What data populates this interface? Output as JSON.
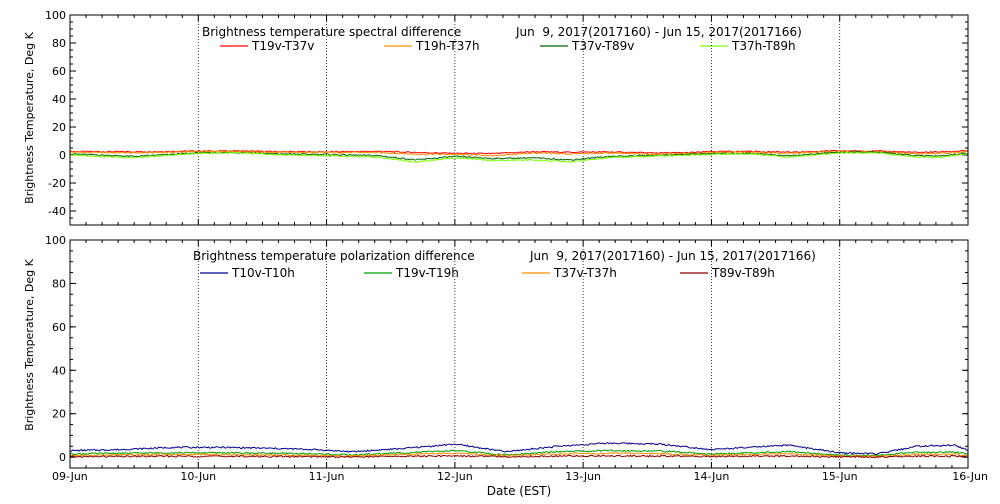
{
  "chart_data": [
    {
      "type": "line",
      "title": "Brightness temperature spectral difference",
      "subtitle": "Jun  9, 2017(2017160) - Jun 15, 2017(2017166)",
      "ylabel": "Brightness Temperature, Deg K",
      "ylim": [
        -50,
        100
      ],
      "yticks": [
        -40,
        -20,
        0,
        20,
        40,
        60,
        80,
        100
      ],
      "xlim": [
        0,
        7
      ],
      "grid": "vertical dotted lines at day boundaries",
      "legend_position": "top",
      "series": [
        {
          "name": "T19v-T37v",
          "color": "#ff0000",
          "x": [
            0,
            0.5,
            1,
            1.3,
            1.6,
            2,
            2.4,
            2.7,
            3,
            3.3,
            3.6,
            3.9,
            4.2,
            4.5,
            4.8,
            5,
            5.3,
            5.6,
            6,
            6.3,
            6.6,
            6.8,
            7
          ],
          "values": [
            2.5,
            2.3,
            2.8,
            2.9,
            2.4,
            2.2,
            2.6,
            1.8,
            1.2,
            1.0,
            2.3,
            2.0,
            2.2,
            1.5,
            1.6,
            2.4,
            2.6,
            2.0,
            3.0,
            2.8,
            1.8,
            2.3,
            3.0
          ]
        },
        {
          "name": "T19h-T37h",
          "color": "#ff8c00",
          "x": [
            0,
            0.5,
            1,
            1.3,
            1.6,
            2,
            2.4,
            2.7,
            3,
            3.3,
            3.6,
            3.9,
            4.2,
            4.5,
            4.8,
            5,
            5.3,
            5.6,
            6,
            6.3,
            6.6,
            6.8,
            7
          ],
          "values": [
            2.0,
            1.5,
            2.4,
            2.5,
            2.0,
            1.8,
            1.8,
            0.6,
            0.5,
            -0.5,
            1.4,
            0.8,
            1.4,
            0.6,
            1.0,
            1.8,
            2.0,
            1.2,
            2.6,
            2.4,
            0.8,
            1.2,
            2.2
          ]
        },
        {
          "name": "T37v-T89v",
          "color": "#006400",
          "x": [
            0,
            0.5,
            1,
            1.3,
            1.6,
            2,
            2.4,
            2.7,
            3,
            3.3,
            3.6,
            3.9,
            4.2,
            4.5,
            4.8,
            5,
            5.3,
            5.6,
            6,
            6.3,
            6.6,
            6.8,
            7
          ],
          "values": [
            0.8,
            -1.0,
            1.5,
            1.8,
            0.8,
            0.4,
            -0.5,
            -3.5,
            -1.0,
            -2.5,
            -2.0,
            -3.5,
            -1.0,
            -0.5,
            0.5,
            1.0,
            1.2,
            -0.5,
            2.0,
            2.0,
            -0.5,
            -0.5,
            1.5
          ]
        },
        {
          "name": "T37h-T89h",
          "color": "#7cfc00",
          "x": [
            0,
            0.5,
            1,
            1.3,
            1.6,
            2,
            2.4,
            2.7,
            3,
            3.3,
            3.6,
            3.9,
            4.2,
            4.5,
            4.8,
            5,
            5.3,
            5.6,
            6,
            6.3,
            6.6,
            6.8,
            7
          ],
          "values": [
            0.0,
            -2.0,
            1.2,
            1.5,
            0.2,
            -0.5,
            -1.5,
            -5.0,
            -2.0,
            -4.0,
            -3.5,
            -5.0,
            -2.0,
            -1.0,
            0.0,
            0.5,
            0.8,
            -1.5,
            1.5,
            1.5,
            -1.5,
            -1.5,
            1.0
          ]
        }
      ]
    },
    {
      "type": "line",
      "title": "Brightness temperature polarization difference",
      "subtitle": "Jun  9, 2017(2017160) - Jun 15, 2017(2017166)",
      "ylabel": "Brightness Temperature, Deg K",
      "xlabel": "Date (EST)",
      "ylim": [
        -5,
        100
      ],
      "yticks": [
        0,
        20,
        40,
        60,
        80,
        100
      ],
      "xlim": [
        0,
        7
      ],
      "xtick_labels": [
        "09-Jun",
        "10-Jun",
        "11-Jun",
        "12-Jun",
        "13-Jun",
        "14-Jun",
        "15-Jun",
        "16-Jun"
      ],
      "grid": "vertical dotted lines at day boundaries",
      "legend_position": "top",
      "series": [
        {
          "name": "T10v-T10h",
          "color": "#00008b",
          "x": [
            0,
            0.4,
            0.8,
            1.2,
            1.6,
            1.9,
            2.2,
            2.6,
            3,
            3.4,
            3.8,
            4.2,
            4.6,
            5,
            5.3,
            5.6,
            6,
            6.3,
            6.6,
            6.9,
            7
          ],
          "values": [
            3.0,
            3.5,
            4.5,
            4.5,
            4.0,
            3.5,
            2.5,
            4.0,
            6.0,
            2.5,
            5.0,
            6.5,
            6.0,
            3.5,
            4.5,
            5.5,
            2.0,
            1.5,
            5.0,
            5.5,
            3.0
          ]
        },
        {
          "name": "T19v-T19h",
          "color": "#00a000",
          "x": [
            0,
            0.4,
            0.8,
            1.2,
            1.6,
            1.9,
            2.2,
            2.6,
            3,
            3.4,
            3.8,
            4.2,
            4.6,
            5,
            5.3,
            5.6,
            6,
            6.3,
            6.6,
            6.9,
            7
          ],
          "values": [
            1.5,
            1.8,
            2.0,
            2.0,
            1.8,
            1.5,
            1.0,
            2.0,
            3.0,
            1.0,
            2.5,
            3.0,
            2.8,
            1.5,
            2.0,
            2.5,
            1.0,
            0.8,
            2.2,
            2.4,
            1.5
          ]
        },
        {
          "name": "T37v-T37h",
          "color": "#ff8c00",
          "x": [
            0,
            0.4,
            0.8,
            1.2,
            1.6,
            1.9,
            2.2,
            2.6,
            3,
            3.4,
            3.8,
            4.2,
            4.6,
            5,
            5.3,
            5.6,
            6,
            6.3,
            6.6,
            6.9,
            7
          ],
          "values": [
            0.8,
            1.0,
            1.2,
            1.2,
            1.0,
            0.8,
            0.5,
            1.2,
            1.8,
            0.6,
            1.5,
            1.8,
            1.6,
            0.9,
            1.2,
            1.5,
            0.5,
            0.4,
            1.3,
            1.4,
            0.8
          ]
        },
        {
          "name": "T89v-T89h",
          "color": "#8b0000",
          "x": [
            0,
            0.4,
            0.8,
            1.2,
            1.6,
            1.9,
            2.2,
            2.6,
            3,
            3.4,
            3.8,
            4.2,
            4.6,
            5,
            5.3,
            5.6,
            6,
            6.3,
            6.6,
            6.9,
            7
          ],
          "values": [
            0.2,
            0.3,
            0.4,
            0.4,
            0.3,
            0.2,
            0.1,
            0.4,
            0.6,
            0.2,
            0.5,
            0.6,
            0.5,
            0.3,
            0.4,
            0.5,
            0.1,
            0.1,
            0.4,
            0.4,
            0.2
          ]
        }
      ]
    }
  ]
}
